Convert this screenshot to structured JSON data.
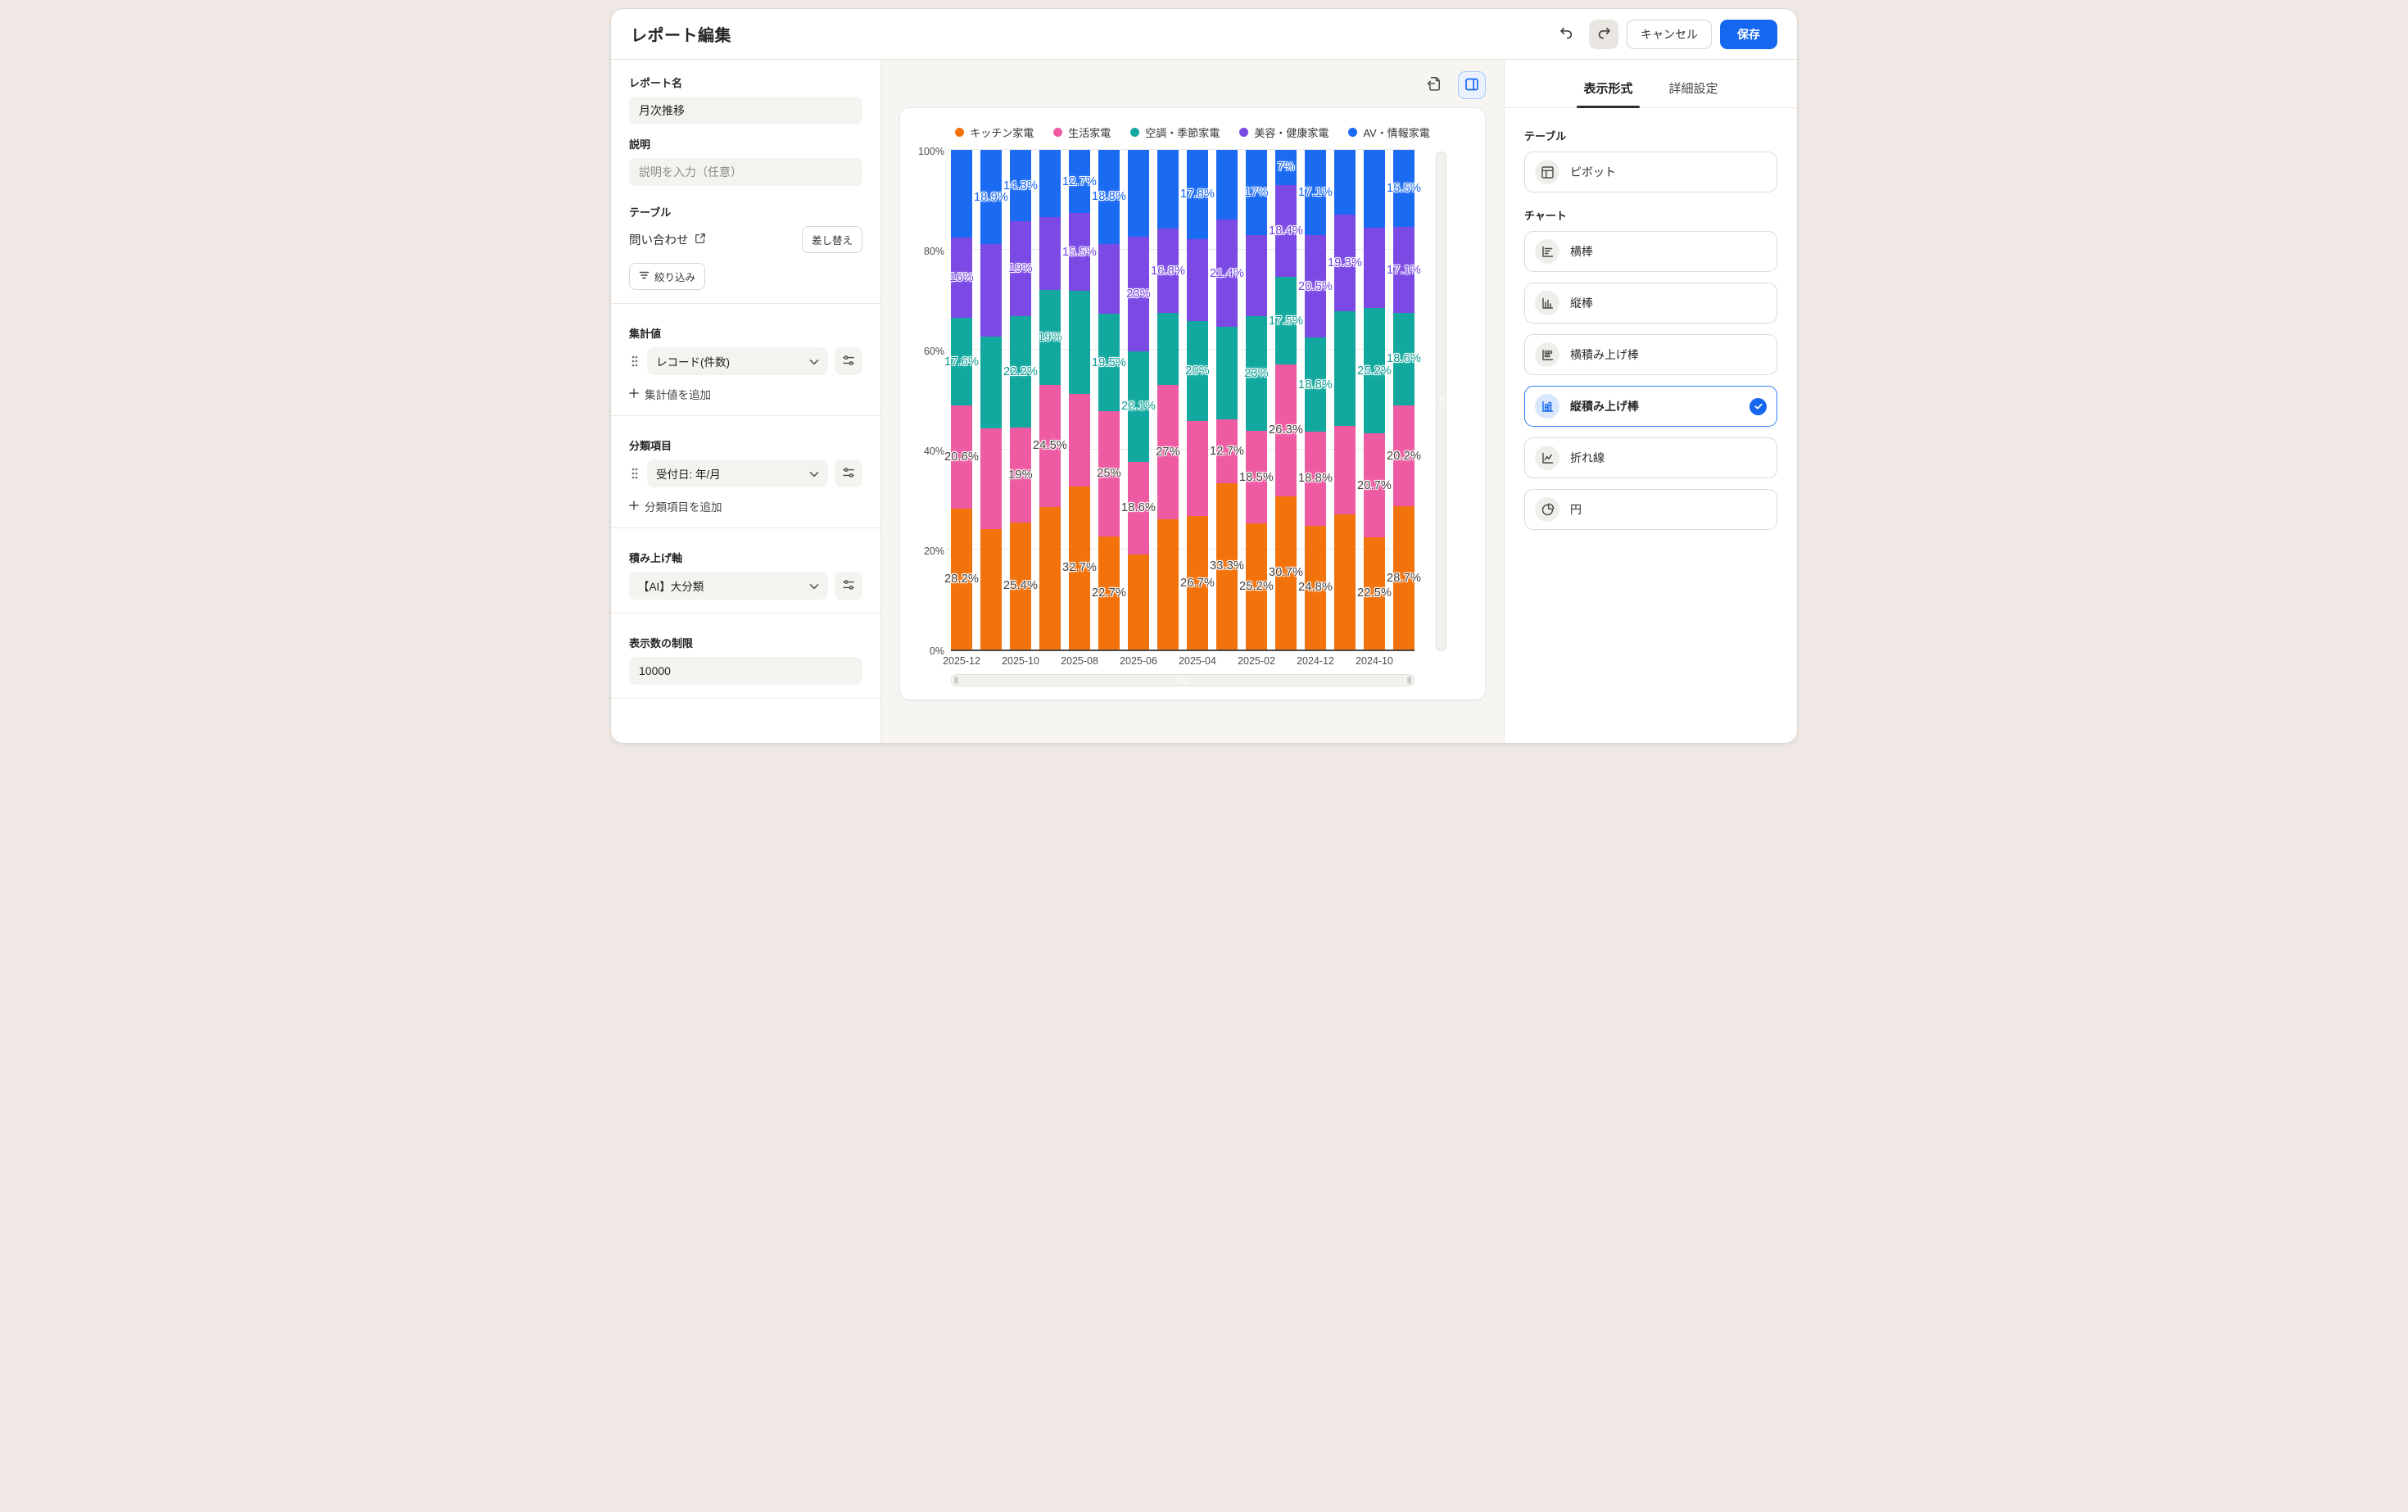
{
  "header": {
    "title": "レポート編集",
    "cancel_label": "キャンセル",
    "save_label": "保存"
  },
  "sidebar": {
    "report_name": {
      "label": "レポート名",
      "value": "月次推移"
    },
    "description": {
      "label": "説明",
      "placeholder": "説明を入力（任意）"
    },
    "table": {
      "label": "テーブル",
      "source_name": "問い合わせ",
      "replace_label": "差し替え",
      "filter_label": "絞り込み"
    },
    "metrics": {
      "label": "集計値",
      "selected": "レコード(件数)",
      "add_label": "集計値を追加"
    },
    "dimensions": {
      "label": "分類項目",
      "selected": "受付日: 年/月",
      "add_label": "分類項目を追加"
    },
    "stack_axis": {
      "label": "積み上げ軸",
      "selected": "【AI】大分類"
    },
    "display_limit": {
      "label": "表示数の制限",
      "value": "10000"
    }
  },
  "panel": {
    "tabs": [
      {
        "label": "表示形式",
        "active": true
      },
      {
        "label": "詳細設定",
        "active": false
      }
    ],
    "table_section": {
      "label": "テーブル"
    },
    "pivot_option": {
      "label": "ピボット"
    },
    "chart_section": {
      "label": "チャート"
    },
    "chart_options": [
      {
        "label": "横棒",
        "icon": "bar-horizontal-icon",
        "selected": false
      },
      {
        "label": "縦棒",
        "icon": "bar-vertical-icon",
        "selected": false
      },
      {
        "label": "横積み上げ棒",
        "icon": "bar-horizontal-stacked-icon",
        "selected": false
      },
      {
        "label": "縦積み上げ棒",
        "icon": "bar-vertical-stacked-icon",
        "selected": true
      },
      {
        "label": "折れ線",
        "icon": "line-chart-icon",
        "selected": false
      },
      {
        "label": "円",
        "icon": "pie-chart-icon",
        "selected": false
      }
    ]
  },
  "chart_data": {
    "type": "bar",
    "subtype": "vertical-100-percent-stacked",
    "unit": "%",
    "ylim": [
      0,
      100
    ],
    "grid": true,
    "legend_position": "top",
    "y_ticks": [
      "0%",
      "20%",
      "40%",
      "60%",
      "80%",
      "100%"
    ],
    "categories": [
      "2025-12",
      "2025-11",
      "2025-10",
      "2025-09",
      "2025-08",
      "2025-07",
      "2025-06",
      "2025-05",
      "2025-04",
      "2025-03",
      "2025-02",
      "2025-01",
      "2024-12",
      "2024-11",
      "2024-10",
      "2024-09"
    ],
    "x_ticks_shown": [
      "2025-12",
      "2025-10",
      "2025-08",
      "2025-06",
      "2025-04",
      "2025-02",
      "2024-12",
      "2024-10"
    ],
    "series": [
      {
        "name": "キッチン家電",
        "color": "#F2720C",
        "label_color": "#46403D",
        "values": [
          28.2,
          24.1,
          25.4,
          28.5,
          32.7,
          22.7,
          19.0,
          26.0,
          26.7,
          33.3,
          25.2,
          30.7,
          24.8,
          27.1,
          22.5,
          28.7
        ],
        "labels": [
          "28.2%",
          null,
          "25.4%",
          null,
          "32.7%",
          "22.7%",
          null,
          null,
          "26.7%",
          "33.3%",
          "25.2%",
          "30.7%",
          "24.8%",
          null,
          "22.5%",
          "28.7%"
        ]
      },
      {
        "name": "生活家電",
        "color": "#EE5BA3",
        "label_color": "#46403D",
        "values": [
          20.6,
          20.1,
          19.0,
          24.5,
          18.5,
          25.0,
          18.6,
          27.0,
          19.0,
          12.7,
          18.5,
          26.3,
          18.8,
          17.6,
          20.7,
          20.2
        ],
        "labels": [
          "20.6%",
          null,
          "19%",
          "24.5%",
          null,
          "25%",
          "18.6%",
          "27%",
          null,
          "12.7%",
          "18.5%",
          "26.3%",
          "18.8%",
          null,
          "20.7%",
          "20.2%"
        ]
      },
      {
        "name": "空調・季節家電",
        "color": "#12A89F",
        "label_color": "#0D9C93",
        "values": [
          17.6,
          18.5,
          22.2,
          19.0,
          20.6,
          19.5,
          22.1,
          14.4,
          20.0,
          18.6,
          23.0,
          17.5,
          18.8,
          23.0,
          25.2,
          18.6
        ],
        "labels": [
          "17.6%",
          null,
          "22.2%",
          "19%",
          null,
          "19.5%",
          "22.1%",
          null,
          "20%",
          null,
          "23%",
          "17.5%",
          "18.8%",
          null,
          "25.2%",
          "18.6%"
        ]
      },
      {
        "name": "美容・健康家電",
        "color": "#7B49E4",
        "label_color": "#7644E0",
        "values": [
          16.0,
          18.4,
          19.0,
          14.5,
          15.5,
          14.0,
          23.0,
          16.8,
          16.5,
          21.4,
          16.3,
          18.4,
          20.5,
          19.3,
          16.1,
          17.1
        ],
        "labels": [
          "16%",
          null,
          "19%",
          null,
          "15.5%",
          null,
          "23%",
          "16.8%",
          null,
          "21.4%",
          null,
          "18.4%",
          "20.5%",
          "19.3%",
          null,
          "17.1%"
        ]
      },
      {
        "name": "AV・情報家電",
        "color": "#1A6AF2",
        "label_color": "#1565EF",
        "values": [
          17.6,
          18.9,
          14.3,
          13.5,
          12.7,
          18.8,
          17.3,
          15.8,
          17.8,
          14.0,
          17.0,
          7.0,
          17.1,
          13.0,
          15.5,
          15.5
        ],
        "labels": [
          null,
          "18.9%",
          "14.3%",
          null,
          "12.7%",
          "18.8%",
          null,
          null,
          "17.8%",
          null,
          "17%",
          "7%",
          "17.1%",
          null,
          null,
          "15.5%"
        ]
      }
    ]
  }
}
